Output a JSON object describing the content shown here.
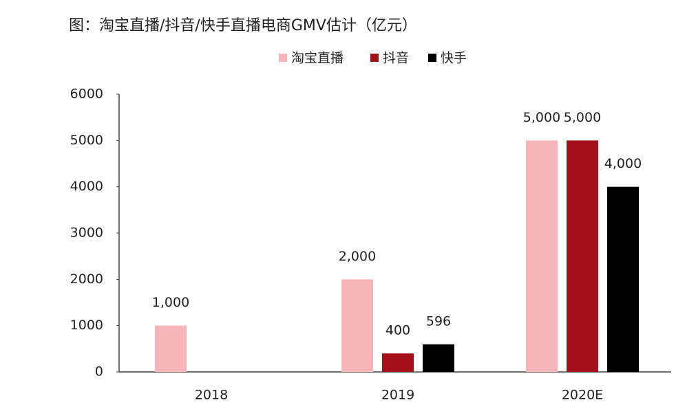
{
  "chart_data": {
    "type": "bar",
    "title": "图：淘宝直播/抖音/快手直播电商GMV估计（亿元）",
    "categories": [
      "2018",
      "2019",
      "2020E"
    ],
    "series": [
      {
        "name": "淘宝直播",
        "color": "#f5b5b9",
        "values": [
          1000,
          2000,
          5000
        ],
        "value_labels": [
          "1,000",
          "2,000",
          "5,000"
        ]
      },
      {
        "name": "抖音",
        "color": "#a50f1a",
        "values": [
          null,
          400,
          5000
        ],
        "value_labels": [
          null,
          "400",
          "5,000"
        ]
      },
      {
        "name": "快手",
        "color": "#000000",
        "values": [
          null,
          596,
          4000
        ],
        "value_labels": [
          null,
          "596",
          "4,000"
        ]
      }
    ],
    "ylim": [
      0,
      6000
    ],
    "yticks": [
      0,
      1000,
      2000,
      3000,
      4000,
      5000,
      6000
    ],
    "grid": false,
    "legend": "top"
  }
}
